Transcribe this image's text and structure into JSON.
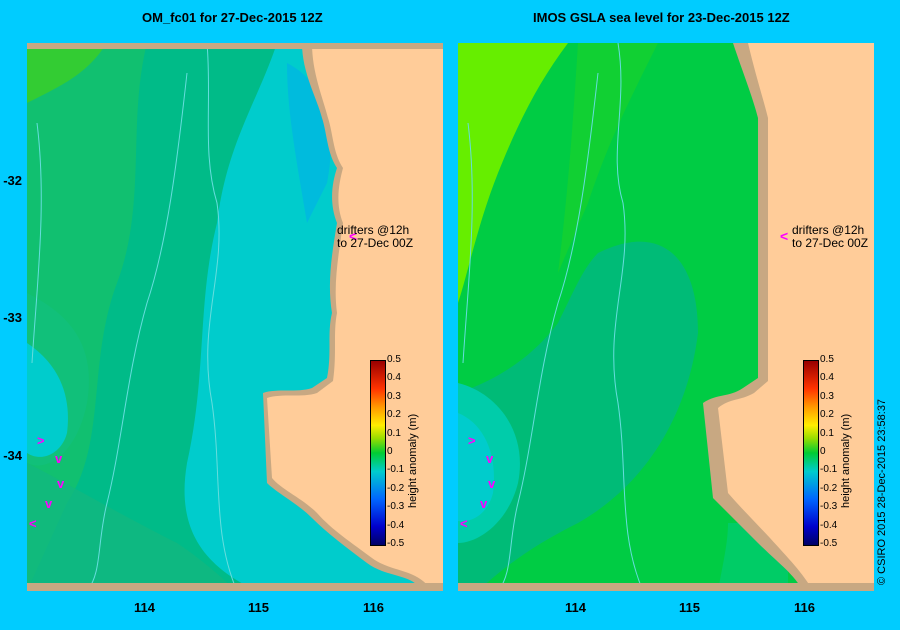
{
  "panels": [
    {
      "title": "OM_fc01  for 27-Dec-2015 12Z",
      "colorbar_title": "height anomaly (m)",
      "drifter_label": "drifters @12h to 27-Dec 00Z"
    },
    {
      "title": "IMOS  GSLA sea level   for 23-Dec-2015 12Z",
      "colorbar_title": "height anomaly (m)",
      "drifter_label": "drifters @12h to 27-Dec 00Z"
    }
  ],
  "axes": {
    "x_ticks": [
      "114",
      "115",
      "116"
    ],
    "y_ticks": [
      "-32",
      "-33",
      "-34"
    ]
  },
  "colorbar": {
    "ticks": [
      "0.5",
      "0.4",
      "0.3",
      "0.2",
      "0.1",
      "0",
      "-0.1",
      "-0.2",
      "-0.3",
      "-0.4",
      "-0.5"
    ],
    "min": -0.5,
    "max": 0.5
  },
  "credit": "© CSIRO 2015   28-Dec-2015 23:58:37",
  "colors": {
    "background": "#00ccff",
    "land": "#ffcc99",
    "coast_shelf": "#c8a882",
    "drifter_marker": "#ff00ff"
  }
}
